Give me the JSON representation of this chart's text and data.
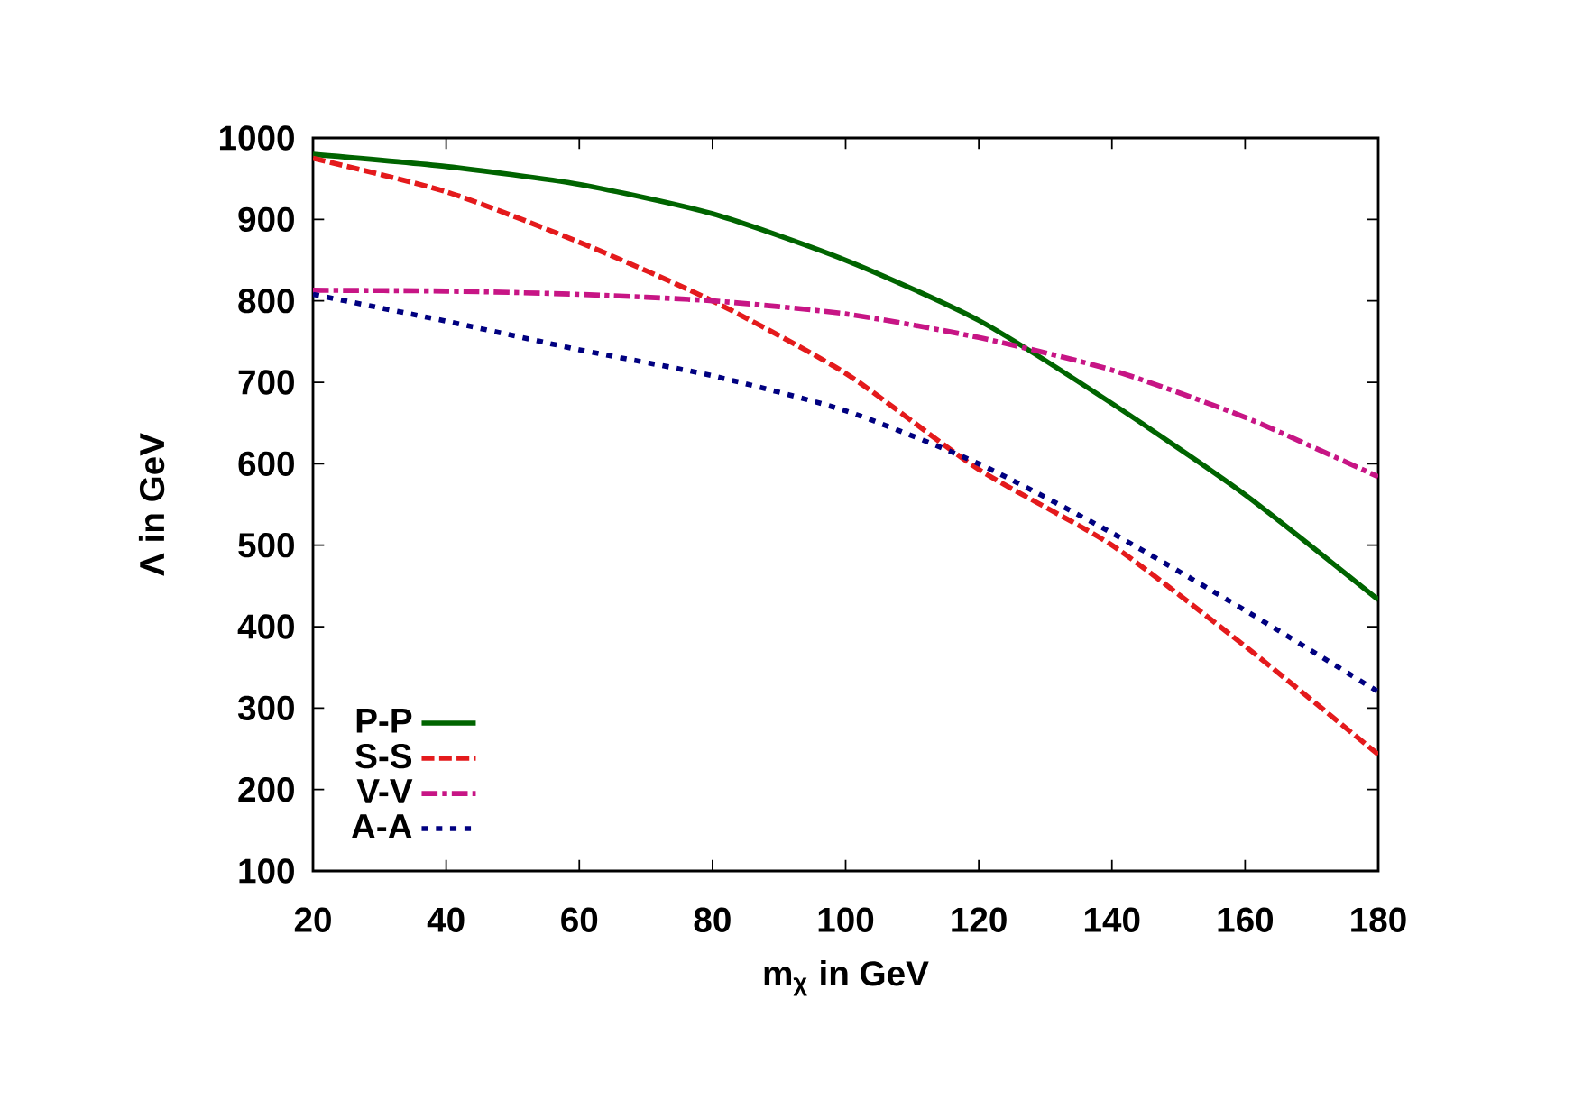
{
  "chart_data": {
    "type": "line",
    "xlabel": "m$_{χ}$ in GeV",
    "ylabel": "Λ in GeV",
    "x": [
      20,
      40,
      60,
      80,
      100,
      120,
      140,
      160,
      180
    ],
    "series": [
      {
        "name": "P-P",
        "color": "#006400",
        "line_style": "solid",
        "values": [
          980,
          965,
          943,
          907,
          850,
          776,
          674,
          562,
          433
        ]
      },
      {
        "name": "S-S",
        "color": "#e41a1c",
        "line_style": "dashed",
        "values": [
          975,
          934,
          872,
          800,
          711,
          593,
          500,
          376,
          243
        ]
      },
      {
        "name": "V-V",
        "color": "#c71585",
        "line_style": "dashdot",
        "values": [
          813,
          812,
          808,
          800,
          784,
          755,
          715,
          657,
          584
        ]
      },
      {
        "name": "A-A",
        "color": "#000080",
        "line_style": "dotted",
        "values": [
          808,
          775,
          740,
          708,
          665,
          600,
          515,
          420,
          320
        ]
      }
    ],
    "xlim": [
      20,
      180
    ],
    "ylim": [
      100,
      1000
    ],
    "xticks": [
      20,
      40,
      60,
      80,
      100,
      120,
      140,
      160,
      180
    ],
    "yticks": [
      100,
      200,
      300,
      400,
      500,
      600,
      700,
      800,
      900,
      1000
    ],
    "grid": false,
    "legend": "bottom left",
    "marker": "none"
  }
}
